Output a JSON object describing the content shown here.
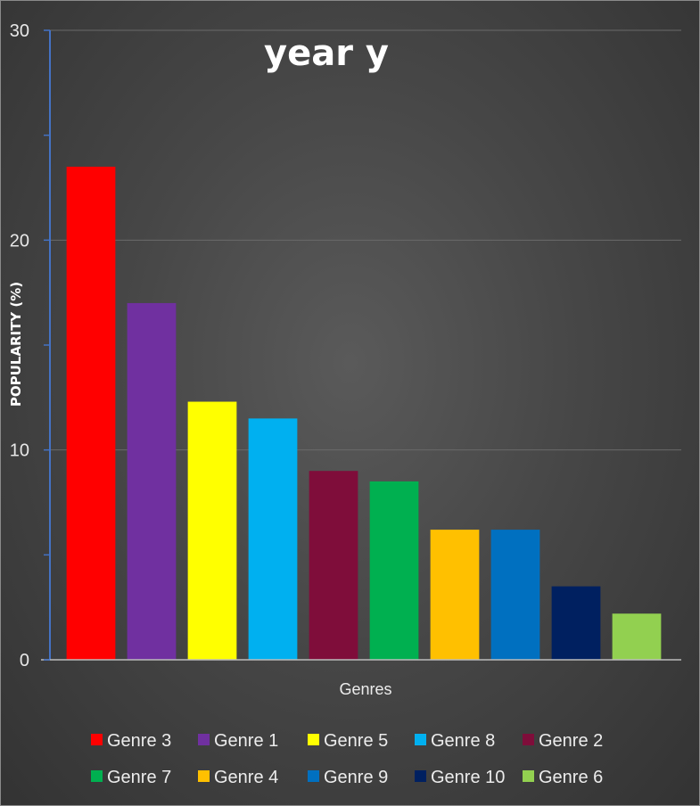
{
  "chart_data": {
    "type": "bar",
    "title": "year y",
    "xlabel": "Genres",
    "ylabel": "POPULARITY (%)",
    "ylim": [
      0,
      30
    ],
    "yticks": [
      0,
      10,
      20,
      30
    ],
    "grid": true,
    "legend_position": "bottom",
    "categories": [
      "Genre 3",
      "Genre 1",
      "Genre 5",
      "Genre 8",
      "Genre 2",
      "Genre 7",
      "Genre 4",
      "Genre 9",
      "Genre 10",
      "Genre 6"
    ],
    "values": [
      23.5,
      17.0,
      12.3,
      11.5,
      9.0,
      8.5,
      6.2,
      6.2,
      3.5,
      2.2
    ],
    "colors": [
      "#FF0000",
      "#7030A0",
      "#FFFF00",
      "#00B0F0",
      "#7F0D3A",
      "#00B050",
      "#FFC000",
      "#0070C0",
      "#002060",
      "#92D050"
    ],
    "background": "#4a4a4a",
    "axis_color": "#4472C4"
  }
}
